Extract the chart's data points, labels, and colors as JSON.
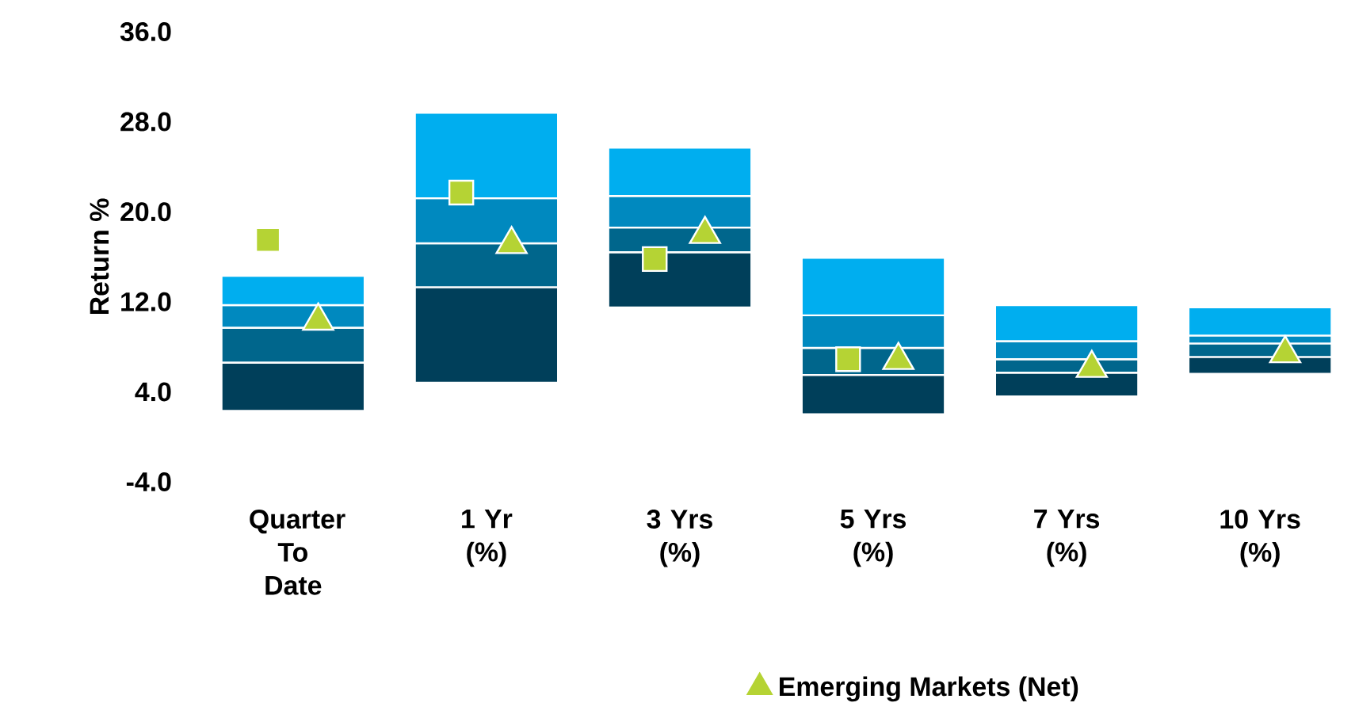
{
  "chart_data": {
    "type": "bar",
    "ylabel": "Return %",
    "categories": [
      "Quarter To Date",
      "1 Yr (%)",
      "3 Yrs (%)",
      "5 Yrs (%)",
      "7 Yrs (%)",
      "10 Yrs (%)"
    ],
    "stacked": true,
    "ylim": [
      -4,
      36
    ],
    "yticks": [
      {
        "value": -4,
        "label": "-4.0"
      },
      {
        "value": 4,
        "label": "4.0"
      },
      {
        "value": 12,
        "label": "12.0"
      },
      {
        "value": 20,
        "label": "20.0"
      },
      {
        "value": 28,
        "label": "28.0"
      },
      {
        "value": 36,
        "label": "36.0"
      }
    ],
    "grid": false,
    "legend": "bottom",
    "series": [
      {
        "color": "#003f5a",
        "base": [
          2.3,
          4.8,
          11.5,
          2.0,
          3.6,
          5.6
        ],
        "values": [
          4.3,
          8.5,
          4.9,
          3.5,
          2.1,
          1.5
        ]
      },
      {
        "color": "#00668c",
        "values": [
          3.1,
          3.9,
          2.2,
          2.4,
          1.2,
          1.2
        ]
      },
      {
        "color": "#0089bf",
        "values": [
          2.0,
          4.0,
          2.8,
          2.9,
          1.6,
          0.7
        ]
      },
      {
        "color": "#00aeef",
        "values": [
          2.6,
          7.6,
          4.3,
          5.1,
          3.2,
          2.5
        ]
      },
      {
        "type": "scatter",
        "marker": "square",
        "color": "#b5d334",
        "values": [
          17.5,
          21.7,
          15.8,
          6.9,
          null,
          null
        ]
      },
      {
        "type": "scatter",
        "name": "Emerging Markets (Net)",
        "marker": "triangle",
        "color": "#b5d334",
        "values": [
          10.3,
          17.1,
          18.0,
          6.8,
          6.1,
          7.4
        ]
      }
    ]
  }
}
